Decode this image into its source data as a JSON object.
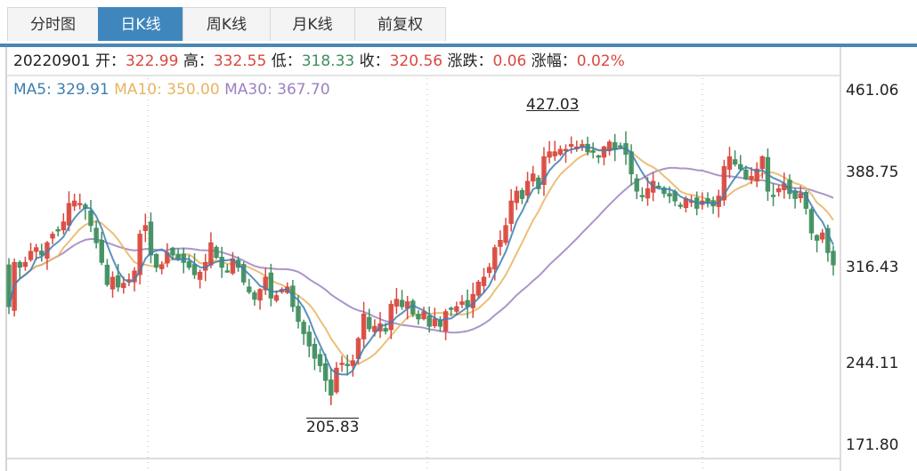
{
  "tabs": [
    {
      "label": "分时图",
      "active": false
    },
    {
      "label": "日K线",
      "active": true
    },
    {
      "label": "周K线",
      "active": false
    },
    {
      "label": "月K线",
      "active": false
    },
    {
      "label": "前复权",
      "active": false
    }
  ],
  "info": {
    "date": "20220901",
    "open_label": "开：",
    "open": "322.99",
    "high_label": "高：",
    "high": "332.55",
    "low_label": "低：",
    "low": "318.33",
    "close_label": "收：",
    "close": "320.56",
    "change_label": "涨跌：",
    "change": "0.06",
    "pct_label": "涨幅：",
    "pct": "0.02%"
  },
  "ma": {
    "ma5_label": "MA5: ",
    "ma5": "329.91",
    "ma10_label": "MA10: ",
    "ma10": "350.00",
    "ma30_label": "MA30: ",
    "ma30": "367.70"
  },
  "colors": {
    "up": "#d9493f",
    "down": "#3f8f5f",
    "ma5": "#3d7fb0",
    "ma10": "#e8b461",
    "ma30": "#9c82bf",
    "tab_active": "#3f86bd"
  },
  "annotations": {
    "max": "427.03",
    "min": "205.83"
  },
  "chart_data": {
    "type": "candlestick",
    "title": "日K线",
    "y_ticks": [
      "461.06",
      "388.75",
      "316.43",
      "244.11",
      "171.80"
    ],
    "ylim": [
      171.8,
      461.06
    ],
    "grid": "vertical dotted",
    "legend": [
      "MA5",
      "MA10",
      "MA30"
    ],
    "highest": 427.03,
    "lowest": 205.83,
    "last": {
      "date": "20220901",
      "open": 322.99,
      "high": 332.55,
      "low": 318.33,
      "close": 320.56,
      "change": 0.06,
      "pct": "0.02%"
    },
    "ma_last": {
      "MA5": 329.91,
      "MA10": 350.0,
      "MA30": 367.7
    },
    "closes": [
      286,
      322,
      318,
      322,
      331,
      334,
      328,
      338,
      345,
      348,
      355,
      370,
      372,
      370,
      366,
      352,
      338,
      322,
      304,
      310,
      302,
      305,
      308,
      315,
      345,
      352,
      328,
      318,
      320,
      330,
      328,
      325,
      322,
      318,
      312,
      314,
      322,
      338,
      326,
      318,
      315,
      325,
      318,
      306,
      298,
      292,
      300,
      310,
      293,
      295,
      300,
      302,
      286,
      274,
      264,
      254,
      244,
      238,
      226,
      214,
      236,
      240,
      238,
      242,
      260,
      280,
      268,
      270,
      272,
      266,
      288,
      292,
      286,
      290,
      280,
      276,
      282,
      270,
      276,
      270,
      282,
      284,
      286,
      290,
      286,
      296,
      306,
      310,
      318,
      334,
      340,
      352,
      372,
      380,
      374,
      388,
      394,
      382,
      408,
      412,
      412,
      414,
      414,
      418,
      416,
      418,
      412,
      412,
      408,
      416,
      420,
      414,
      416,
      410,
      394,
      380,
      376,
      382,
      388,
      384,
      378,
      376,
      372,
      368,
      374,
      372,
      366,
      372,
      370,
      368,
      376,
      400,
      408,
      402,
      398,
      390,
      392,
      398,
      408,
      380,
      376,
      382,
      386,
      378,
      374,
      378,
      366,
      346,
      340,
      346,
      330,
      320
    ]
  }
}
